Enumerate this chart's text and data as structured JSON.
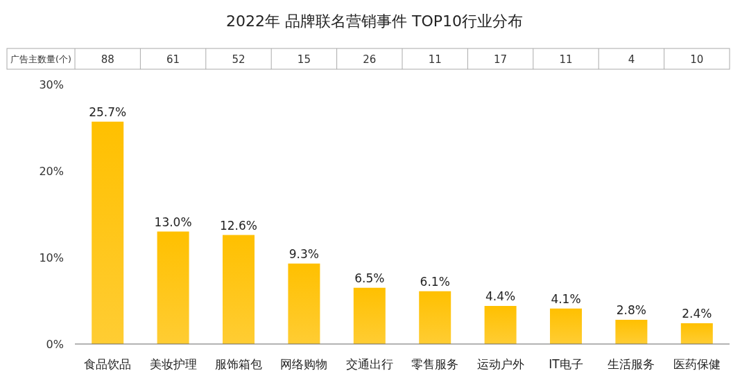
{
  "chart_data": [
    {
      "type": "other",
      "title": "2022年 品牌联名营销事件 TOP10行业分布",
      "ylabel": "广告主数量(个)",
      "categories": [
        null,
        null,
        null,
        null,
        null,
        null,
        null,
        null,
        null,
        null
      ],
      "values": [
        88,
        61,
        52,
        15,
        26,
        11,
        17,
        11,
        4,
        10
      ],
      "data_labels": true
    },
    {
      "type": "bar",
      "categories": [
        "食品饮品",
        "美妆护理",
        "服饰箱包",
        "网络购物",
        "交通出行",
        "零售服务",
        "运动户外",
        "IT电子",
        "生活服务",
        "医药保健"
      ],
      "color": "#ffc000",
      "values": [
        25.7,
        13.0,
        12.6,
        9.3,
        6.5,
        6.1,
        4.4,
        4.1,
        2.8,
        2.4
      ],
      "value_labels": [
        "25.7%",
        "13.0%",
        "12.6%",
        "9.3%",
        "6.5%",
        "6.1%",
        "4.4%",
        "4.1%",
        "2.8%",
        "2.4%"
      ],
      "ylim": [
        0,
        30
      ],
      "yticks": [
        {
          "value": 0,
          "label": "0%"
        },
        {
          "value": 10,
          "label": "10%"
        },
        {
          "value": 20,
          "label": "20%"
        },
        {
          "value": 30,
          "label": "30%"
        }
      ]
    }
  ]
}
